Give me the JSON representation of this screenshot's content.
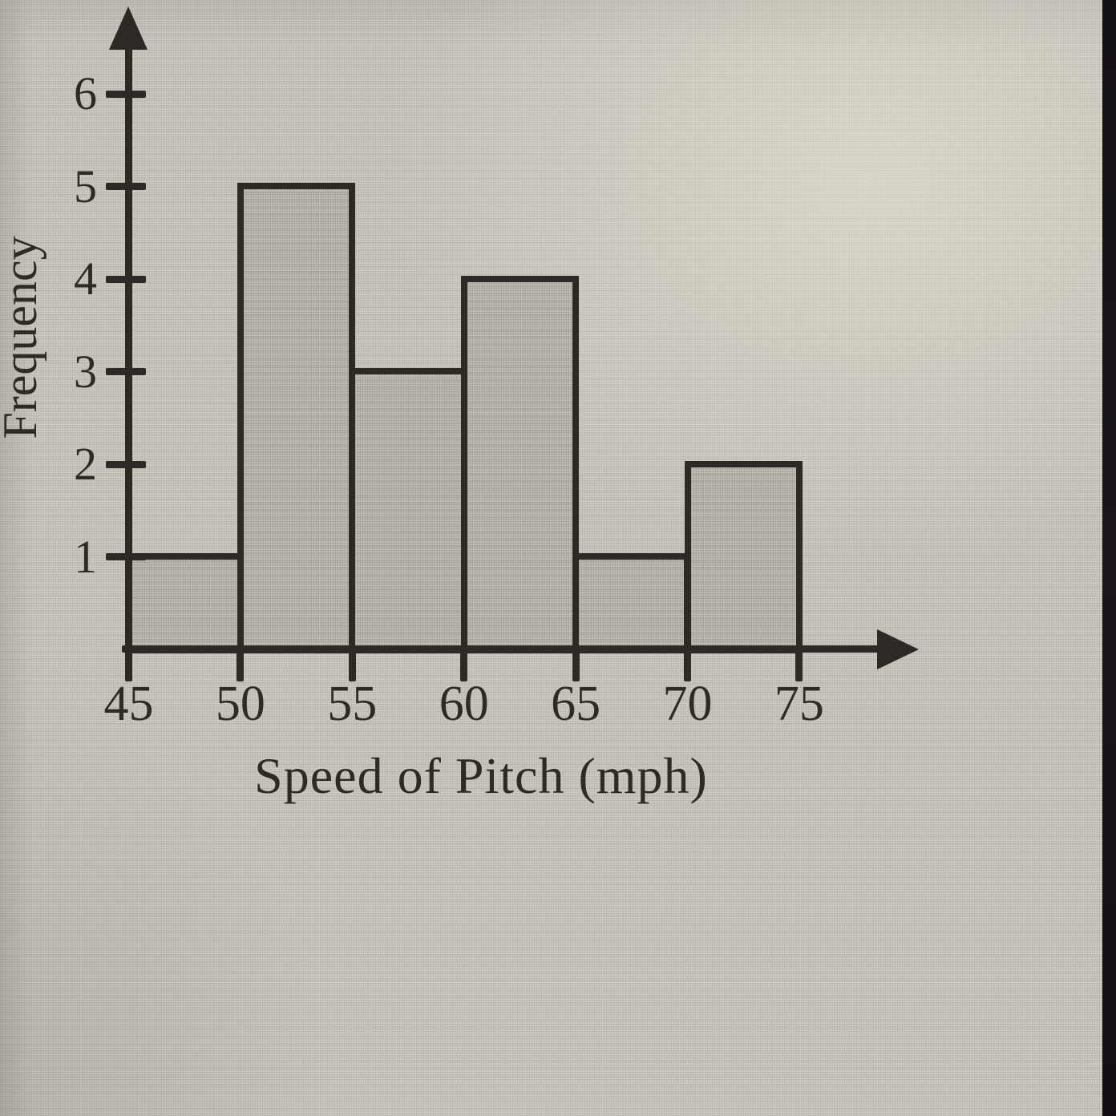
{
  "chart_data": {
    "type": "bar",
    "subtype": "histogram",
    "title": "",
    "xlabel": "Speed of Pitch (mph)",
    "ylabel": "Frequency",
    "bin_edges": [
      45,
      50,
      55,
      60,
      65,
      70,
      75
    ],
    "x_tick_labels": [
      "45",
      "50",
      "55",
      "60",
      "65",
      "70",
      "75"
    ],
    "categories": [
      "45-50",
      "50-55",
      "55-60",
      "60-65",
      "65-70",
      "70-75"
    ],
    "values": [
      1,
      5,
      3,
      4,
      1,
      2
    ],
    "y_ticks": [
      1,
      2,
      3,
      4,
      5,
      6
    ],
    "ylim": [
      0,
      6.9
    ],
    "xlim": [
      45,
      75
    ],
    "grid": false,
    "legend": null,
    "colors": {
      "bar_fill": "#b7b4ab",
      "axis_line": "#2d2a25",
      "text": "#2e2a25",
      "background": "#c8c5be",
      "photo_edge_strip": "#16121a"
    }
  }
}
